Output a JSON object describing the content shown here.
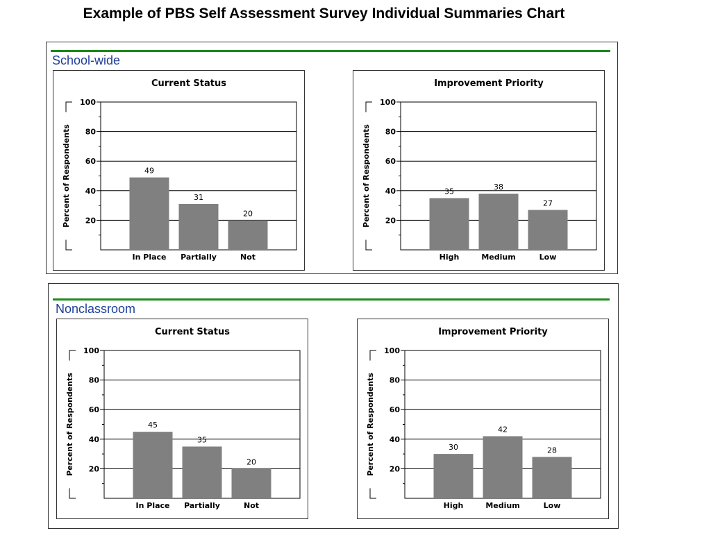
{
  "page": {
    "title": "Example of PBS Self Assessment Survey Individual Summaries Chart"
  },
  "sections": [
    {
      "title": "School-wide"
    },
    {
      "title": "Nonclassroom"
    }
  ],
  "colors": {
    "bar": "#808080",
    "rule": "#1a8a1a",
    "section_title": "#1f3f99"
  },
  "chart_data": [
    {
      "section": "School-wide",
      "type": "bar",
      "title": "Current Status",
      "ylabel": "Percent of Respondents",
      "ylim": [
        0,
        100
      ],
      "yticks": [
        20,
        40,
        60,
        80,
        100
      ],
      "grid": true,
      "categories": [
        "In Place",
        "Partially",
        "Not"
      ],
      "values": [
        49,
        31,
        20
      ]
    },
    {
      "section": "School-wide",
      "type": "bar",
      "title": "Improvement Priority",
      "ylabel": "Percent of Respondents",
      "ylim": [
        0,
        100
      ],
      "yticks": [
        20,
        40,
        60,
        80,
        100
      ],
      "grid": true,
      "categories": [
        "High",
        "Medium",
        "Low"
      ],
      "values": [
        35,
        38,
        27
      ]
    },
    {
      "section": "Nonclassroom",
      "type": "bar",
      "title": "Current Status",
      "ylabel": "Percent of Respondents",
      "ylim": [
        0,
        100
      ],
      "yticks": [
        20,
        40,
        60,
        80,
        100
      ],
      "grid": true,
      "categories": [
        "In Place",
        "Partially",
        "Not"
      ],
      "values": [
        45,
        35,
        20
      ]
    },
    {
      "section": "Nonclassroom",
      "type": "bar",
      "title": "Improvement Priority",
      "ylabel": "Percent of Respondents",
      "ylim": [
        0,
        100
      ],
      "yticks": [
        20,
        40,
        60,
        80,
        100
      ],
      "grid": true,
      "categories": [
        "High",
        "Medium",
        "Low"
      ],
      "values": [
        30,
        42,
        28
      ]
    }
  ]
}
